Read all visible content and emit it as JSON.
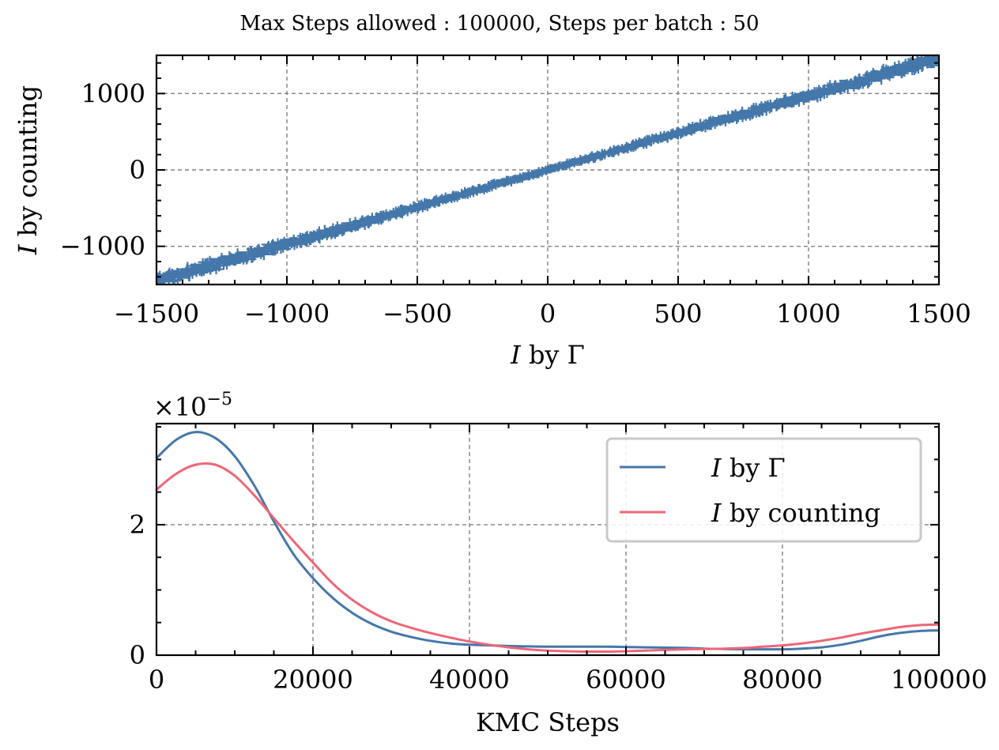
{
  "figure": {
    "suptitle": "Max Steps allowed : 100000, Steps per batch : 50"
  },
  "chart_data": [
    {
      "type": "scatter",
      "error_bars": true,
      "xlabel": "I by Γ",
      "ylabel": "I by counting",
      "xlim": [
        -1500,
        1500
      ],
      "ylim": [
        -1500,
        1500
      ],
      "xticks": [
        -1500,
        -1000,
        -500,
        0,
        500,
        1000,
        1500
      ],
      "xtick_labels": [
        "−1500",
        "−1000",
        "−500",
        "0",
        "500",
        "1000",
        "1500"
      ],
      "yticks": [
        -1000,
        0,
        1000
      ],
      "ytick_labels": [
        "−1000",
        "0",
        "1000"
      ],
      "grid": true,
      "color": "#4477aa",
      "points": {
        "slope": 0.97,
        "x_range": [
          -1500,
          1500
        ],
        "count": 420,
        "note_scatter_y_sd": 25
      }
    },
    {
      "type": "line",
      "xlabel": "KMC Steps",
      "ylabel": "",
      "xlim": [
        0,
        100000
      ],
      "ylim": [
        0,
        3.55
      ],
      "y_offset_label": "×10",
      "y_offset_exp": "−5",
      "xticks": [
        0,
        20000,
        40000,
        60000,
        80000,
        100000
      ],
      "xtick_labels": [
        "0",
        "20000",
        "40000",
        "60000",
        "80000",
        "100000"
      ],
      "yticks": [
        0,
        2
      ],
      "ytick_labels": [
        "0",
        "2"
      ],
      "grid": true,
      "legend_position": "top-right",
      "x": [
        0,
        2500,
        5000,
        7500,
        10000,
        12500,
        15000,
        17500,
        20000,
        22500,
        25000,
        27500,
        30000,
        32500,
        35000,
        37500,
        40000,
        42500,
        45000,
        47500,
        50000,
        52500,
        55000,
        57500,
        60000,
        62500,
        65000,
        67500,
        70000,
        72500,
        75000,
        77500,
        80000,
        82500,
        85000,
        87500,
        90000,
        92500,
        95000,
        97500,
        100000
      ],
      "series": [
        {
          "name": "I by Γ",
          "color": "#4477aa",
          "values": [
            3.02,
            3.3,
            3.42,
            3.33,
            3.05,
            2.6,
            2.05,
            1.55,
            1.18,
            0.88,
            0.65,
            0.48,
            0.36,
            0.28,
            0.22,
            0.18,
            0.16,
            0.15,
            0.14,
            0.135,
            0.13,
            0.13,
            0.13,
            0.13,
            0.125,
            0.12,
            0.115,
            0.11,
            0.1,
            0.095,
            0.09,
            0.09,
            0.09,
            0.1,
            0.12,
            0.16,
            0.22,
            0.29,
            0.34,
            0.37,
            0.38
          ]
        },
        {
          "name": "I by counting",
          "color": "#ee6677",
          "values": [
            2.54,
            2.78,
            2.92,
            2.92,
            2.75,
            2.45,
            2.1,
            1.75,
            1.42,
            1.1,
            0.85,
            0.66,
            0.52,
            0.42,
            0.34,
            0.27,
            0.21,
            0.16,
            0.12,
            0.09,
            0.07,
            0.06,
            0.055,
            0.055,
            0.06,
            0.07,
            0.08,
            0.09,
            0.095,
            0.1,
            0.11,
            0.13,
            0.15,
            0.18,
            0.22,
            0.27,
            0.33,
            0.38,
            0.43,
            0.46,
            0.47
          ]
        }
      ]
    }
  ]
}
